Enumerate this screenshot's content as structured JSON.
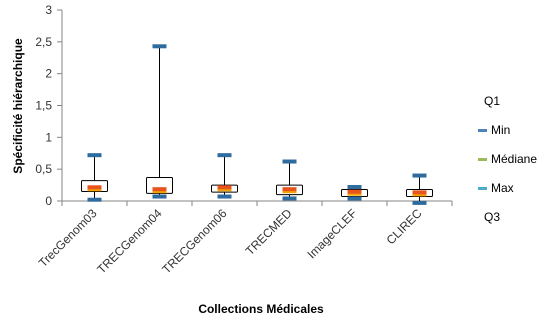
{
  "chart_data": {
    "type": "box",
    "xlabel": "Collections Médicales",
    "ylabel": "Spécificité hiérarchique",
    "ylim": [
      0,
      3
    ],
    "yticks": [
      0,
      0.5,
      1,
      1.5,
      2,
      2.5,
      3
    ],
    "ytick_labels": [
      "0",
      "0,5",
      "1",
      "1,5",
      "2",
      "2,5",
      "3"
    ],
    "grid": false,
    "legend_position": "right",
    "categories": [
      "TrecGenom03",
      "TRECGenom04",
      "TRECGenom06",
      "TRECMED",
      "ImageCLEF",
      "CLIREC"
    ],
    "series": [
      {
        "name": "Q1",
        "values": [
          0.15,
          0.12,
          0.14,
          0.1,
          0.07,
          0.07
        ]
      },
      {
        "name": "Min",
        "values": [
          0.02,
          0.07,
          0.07,
          0.04,
          0.04,
          -0.03
        ]
      },
      {
        "name": "Médiane",
        "values": [
          0.2,
          0.17,
          0.2,
          0.17,
          0.13,
          0.12
        ]
      },
      {
        "name": "Max",
        "values": [
          0.72,
          2.43,
          0.72,
          0.62,
          0.22,
          0.4
        ]
      },
      {
        "name": "Q3",
        "values": [
          0.32,
          0.37,
          0.25,
          0.25,
          0.18,
          0.18
        ]
      }
    ],
    "colors": {
      "min_marker": "#2e6b9e",
      "max_marker": "#2e6b9e",
      "median_marker": "#e8541e",
      "median_marker_alt": "#f4a300",
      "box": "#000000",
      "legend_min": "#4f81bd",
      "legend_median": "#9bbb59",
      "legend_max": "#4bacc6"
    }
  }
}
